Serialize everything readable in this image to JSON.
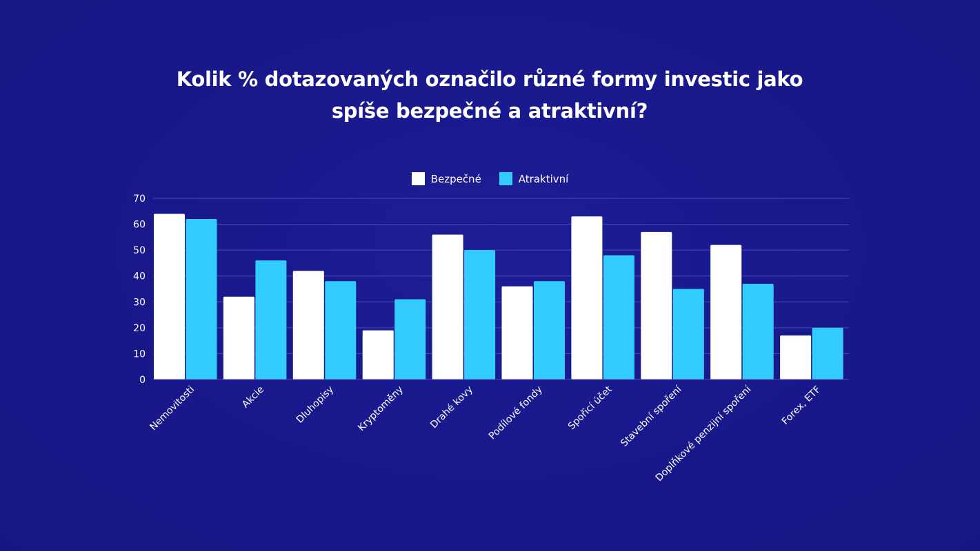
{
  "title_lines": [
    "Kolik % dotazovaných označilo různé formy investic jako",
    "spíše bezpečné a atraktivní?"
  ],
  "colors": {
    "background": "#1a1a8c",
    "gridline": "#4a4ab8",
    "bezpecne": "#ffffff",
    "atraktivni": "#33ccff"
  },
  "chart_data": {
    "type": "bar",
    "title": "Kolik % dotazovaných označilo různé formy investic jako spíše bezpečné a atraktivní?",
    "categories": [
      "Nemovitosti",
      "Akcie",
      "Dluhopisy",
      "Kryptoměny",
      "Drahé kovy",
      "Podílové fondy",
      "Spořicí účet",
      "Stavební spoření",
      "Doplňkové penzijní spoření",
      "Forex, ETF"
    ],
    "series": [
      {
        "name": "Bezpečné",
        "color": "#ffffff",
        "values": [
          64,
          32,
          42,
          19,
          56,
          36,
          63,
          57,
          52,
          17
        ]
      },
      {
        "name": "Atraktivní",
        "color": "#33ccff",
        "values": [
          62,
          46,
          38,
          31,
          50,
          38,
          48,
          35,
          37,
          20
        ]
      }
    ],
    "ylim": [
      0,
      70
    ],
    "yticks": [
      0,
      10,
      20,
      30,
      40,
      50,
      60,
      70
    ],
    "xlabel": "",
    "ylabel": "",
    "grid": true,
    "legend": "top-center"
  }
}
